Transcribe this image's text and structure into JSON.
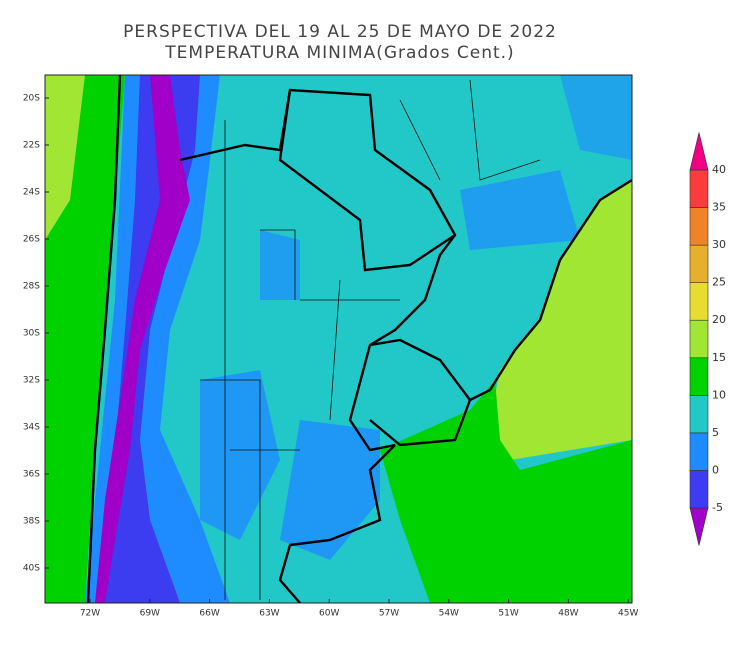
{
  "title": [
    "PERSPECTIVA DEL 19 AL 25 DE MAYO DE 2022",
    "TEMPERATURA MINIMA(Grados Cent.)"
  ],
  "map": {
    "lat_labels": [
      "20S",
      "22S",
      "24S",
      "26S",
      "28S",
      "30S",
      "32S",
      "34S",
      "36S",
      "38S",
      "40S"
    ],
    "lon_labels": [
      "72W",
      "69W",
      "66W",
      "63W",
      "60W",
      "57W",
      "54W",
      "51W",
      "48W",
      "45W"
    ]
  },
  "colorbar": {
    "ticks": [
      -5,
      0,
      5,
      10,
      15,
      20,
      25,
      30,
      35,
      40
    ],
    "colors": [
      "#a000c8",
      "#3c3cf0",
      "#1e8cff",
      "#22c8c8",
      "#00d200",
      "#a0e632",
      "#e6dc32",
      "#e6af2d",
      "#f08228",
      "#fa3c3c",
      "#f00082"
    ]
  }
}
